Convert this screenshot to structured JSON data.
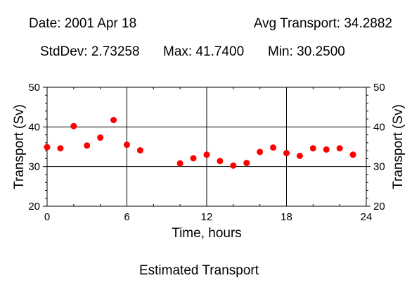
{
  "header": {
    "date_text": "Date: 2001 Apr 18",
    "avg_text": "Avg Transport: 34.2882",
    "std_text": "StdDev: 2.73258",
    "max_text": "Max: 41.7400",
    "min_text": "Min: 30.2500"
  },
  "caption": "Estimated Transport",
  "chart_data": {
    "type": "scatter",
    "xlabel": "Time, hours",
    "ylabel": "Transport (Sv)",
    "ylabel_right": "Transport (Sv)",
    "xlim": [
      0,
      24
    ],
    "ylim": [
      20,
      50
    ],
    "x_ticks": [
      0,
      6,
      12,
      18,
      24
    ],
    "y_ticks": [
      20,
      30,
      40,
      50
    ],
    "grid": true,
    "marker_color": "#ff0000",
    "series": [
      {
        "x": [
          0,
          1,
          2,
          3,
          4,
          5,
          6,
          7,
          10,
          11,
          12,
          13,
          14,
          15,
          16,
          17,
          18,
          19,
          20,
          21,
          22,
          23
        ],
        "y": [
          34.9,
          34.6,
          40.2,
          35.3,
          37.3,
          41.74,
          35.5,
          34.1,
          30.8,
          32.1,
          33.0,
          31.4,
          30.25,
          30.9,
          33.7,
          34.8,
          33.4,
          32.7,
          34.6,
          34.3,
          34.6,
          33.0
        ]
      }
    ]
  }
}
